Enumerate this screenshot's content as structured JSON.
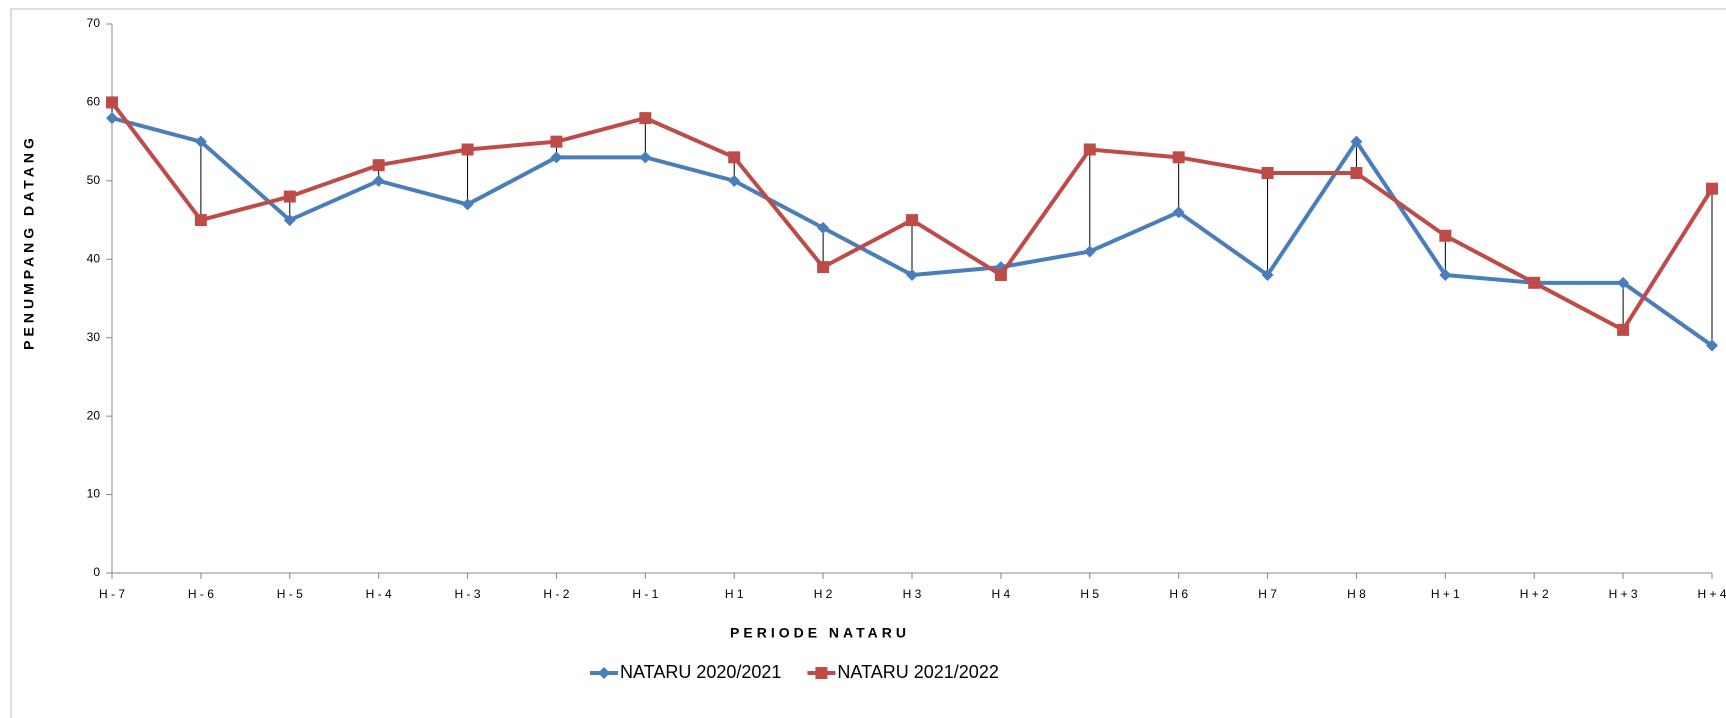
{
  "chart_data": {
    "type": "line",
    "xlabel": "PERIODE NATARU",
    "ylabel": "PENUMPANG DATANG",
    "categories": [
      "H - 7",
      "H - 6",
      "H - 5",
      "H - 4",
      "H - 3",
      "H - 2",
      "H - 1",
      "H 1",
      "H 2",
      "H 3",
      "H 4",
      "H 5",
      "H 6",
      "H 7",
      "H 8",
      "H + 1",
      "H + 2",
      "H + 3",
      "H + 4"
    ],
    "series": [
      {
        "name": "NATARU 2020/2021",
        "color": "#4a7ebb",
        "marker": "diamond",
        "values": [
          58,
          55,
          45,
          50,
          47,
          53,
          53,
          50,
          44,
          38,
          39,
          41,
          46,
          38,
          55,
          38,
          37,
          37,
          29
        ]
      },
      {
        "name": "NATARU 2021/2022",
        "color": "#be4b48",
        "marker": "square",
        "values": [
          60,
          45,
          48,
          52,
          54,
          55,
          58,
          53,
          39,
          45,
          38,
          54,
          53,
          51,
          51,
          43,
          37,
          31,
          49
        ]
      }
    ],
    "ylim": [
      0,
      70
    ],
    "yticks": [
      0,
      10,
      20,
      30,
      40,
      50,
      60,
      70
    ],
    "high_low_lines": true,
    "grid": false,
    "legend": "bottom"
  }
}
